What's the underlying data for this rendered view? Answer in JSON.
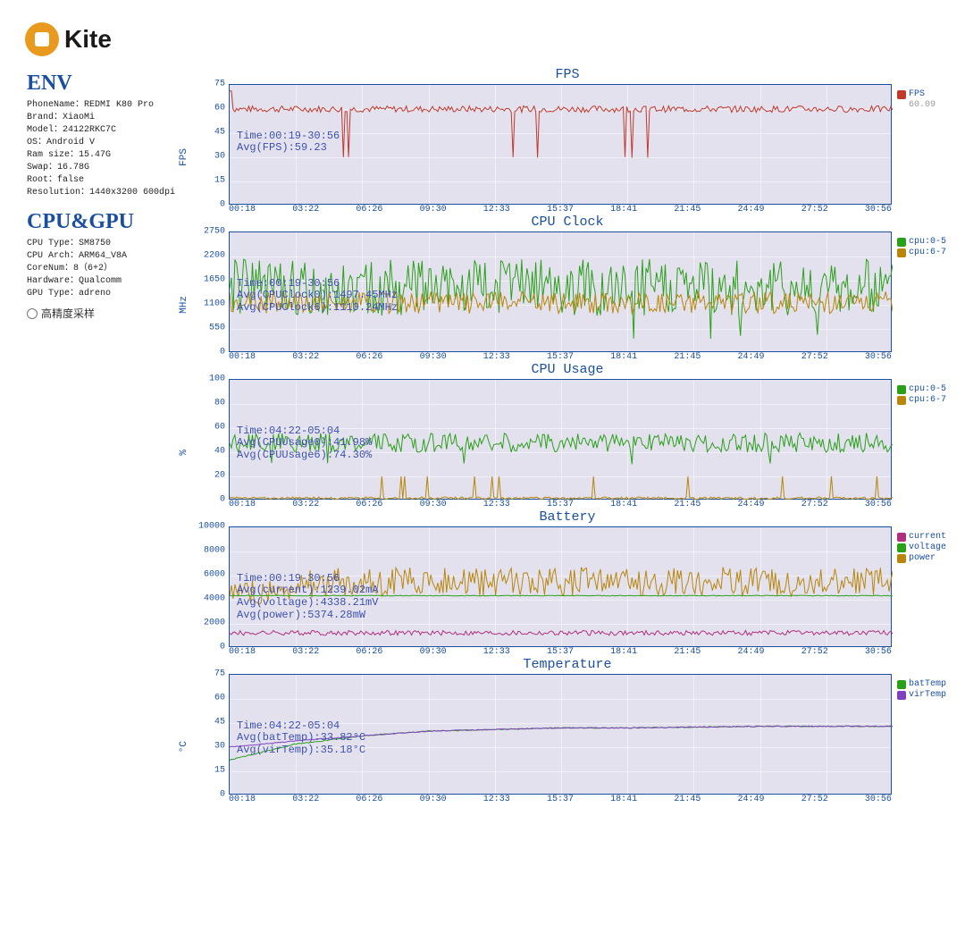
{
  "logo": {
    "text": "Kite"
  },
  "env": {
    "title": "ENV",
    "lines": [
      "PhoneName：REDMI K80 Pro",
      "Brand：XiaoMi",
      "Model：24122RKC7C",
      "OS：Android V",
      "Ram size：15.47G",
      "Swap：16.78G",
      "Root：false",
      "Resolution：1440x3200 600dpi"
    ]
  },
  "cpugpu": {
    "title": "CPU&GPU",
    "lines": [
      "CPU Type：SM8750",
      "CPU Arch：ARM64_V8A",
      "CoreNum：8（6+2）",
      "Hardware：Qualcomm",
      "GPU Type：adreno"
    ]
  },
  "sampling_label": "高精度采样",
  "x_ticks": [
    "00:18",
    "03:22",
    "06:26",
    "09:30",
    "12:33",
    "15:37",
    "18:41",
    "21:45",
    "24:49",
    "27:52",
    "30:56"
  ],
  "colors": {
    "title": "#1a4fa0",
    "plot_bg": "#e4e1ee",
    "grid": "#ffffff",
    "fps": "#c0392b",
    "cpu05": "#2aa01a",
    "cpu67": "#b8860b",
    "current": "#b03080",
    "voltage": "#2aa01a",
    "power": "#b8860b",
    "batTemp": "#2aa01a",
    "virTemp": "#8040c0"
  },
  "charts": [
    {
      "id": "fps",
      "title": "FPS",
      "ylabel": "FPS",
      "height": 135,
      "y_ticks": [
        "0",
        "15",
        "30",
        "45",
        "60",
        "75"
      ],
      "y_max": 75,
      "overlay": [
        "Time:00:19-30:56",
        "Avg(FPS):59.23"
      ],
      "legend": [
        {
          "label": "FPS",
          "color": "#c0392b"
        }
      ],
      "legend_val": "60.09",
      "series": [
        {
          "color": "#c0392b",
          "baseline": 60,
          "noise": 2,
          "dip_to": 30,
          "dip_freq": 0.018,
          "spike_first": true
        }
      ]
    },
    {
      "id": "cpuclock",
      "title": "CPU Clock",
      "ylabel": "MHz",
      "height": 135,
      "y_ticks": [
        "0",
        "550",
        "1100",
        "1650",
        "2200",
        "2750"
      ],
      "y_max": 2750,
      "overlay": [
        "Time:00:19-30:56",
        "Avg(CPUClock0):1497.45MHz",
        "Avg(CPUClock6):1110.24MHz"
      ],
      "legend": [
        {
          "label": "cpu:0-5",
          "color": "#2aa01a"
        },
        {
          "label": "cpu:6-7",
          "color": "#b8860b"
        }
      ],
      "series": [
        {
          "color": "#2aa01a",
          "baseline": 1500,
          "noise": 650,
          "dip_to": 400,
          "dip_freq": 0.01
        },
        {
          "color": "#b8860b",
          "baseline": 1150,
          "noise": 250,
          "dip_to": 700,
          "dip_freq": 0.005
        }
      ]
    },
    {
      "id": "cpuusage",
      "title": "CPU Usage",
      "ylabel": "%",
      "height": 135,
      "y_ticks": [
        "0",
        "20",
        "40",
        "60",
        "80",
        "100"
      ],
      "y_max": 100,
      "overlay": [
        "Time:04:22-05:04",
        "Avg(CPUUsage0):41.98%",
        "Avg(CPUUsage6):74.30%"
      ],
      "legend": [
        {
          "label": "cpu:0-5",
          "color": "#2aa01a"
        },
        {
          "label": "cpu:6-7",
          "color": "#b8860b"
        }
      ],
      "series": [
        {
          "color": "#2aa01a",
          "baseline": 48,
          "noise": 8,
          "dip_to": 30,
          "dip_freq": 0.008
        },
        {
          "color": "#b8860b",
          "baseline": 2,
          "noise": 1,
          "spike_to": 20,
          "spike_freq": 0.02
        }
      ]
    },
    {
      "id": "battery",
      "title": "Battery",
      "ylabel": "",
      "height": 135,
      "y_ticks": [
        "0",
        "2000",
        "4000",
        "6000",
        "8000",
        "10000"
      ],
      "y_max": 10000,
      "overlay": [
        "Time:00:19-30:56",
        "Avg(current):1239.02mA",
        "Avg(voltage):4338.21mV",
        "Avg(power):5374.28mW"
      ],
      "legend": [
        {
          "label": "current",
          "color": "#b03080"
        },
        {
          "label": "voltage",
          "color": "#2aa01a"
        },
        {
          "label": "power",
          "color": "#b8860b"
        }
      ],
      "series": [
        {
          "color": "#b8860b",
          "baseline": 5500,
          "noise": 1200,
          "dip_to": 4200,
          "dip_freq": 0.01,
          "ramp_from": 4500,
          "ramp_at": 0.15
        },
        {
          "color": "#2aa01a",
          "baseline": 4338,
          "noise": 30
        },
        {
          "color": "#b03080",
          "baseline": 1250,
          "noise": 200
        }
      ]
    },
    {
      "id": "temperature",
      "title": "Temperature",
      "ylabel": "°C",
      "height": 135,
      "y_ticks": [
        "0",
        "15",
        "30",
        "45",
        "60",
        "75"
      ],
      "y_max": 75,
      "overlay": [
        "Time:04:22-05:04",
        "Avg(batTemp):33.82°C",
        "Avg(virTemp):35.18°C"
      ],
      "legend": [
        {
          "label": "batTemp",
          "color": "#2aa01a"
        },
        {
          "label": "virTemp",
          "color": "#8040c0"
        }
      ],
      "series": [
        {
          "color": "#2aa01a",
          "curve": [
            22,
            32,
            37,
            40,
            41,
            42,
            42,
            42.5,
            43,
            43,
            43
          ]
        },
        {
          "color": "#8040c0",
          "curve": [
            30,
            34,
            37,
            40,
            41,
            42,
            42,
            42.5,
            43,
            43,
            43
          ]
        }
      ]
    }
  ]
}
